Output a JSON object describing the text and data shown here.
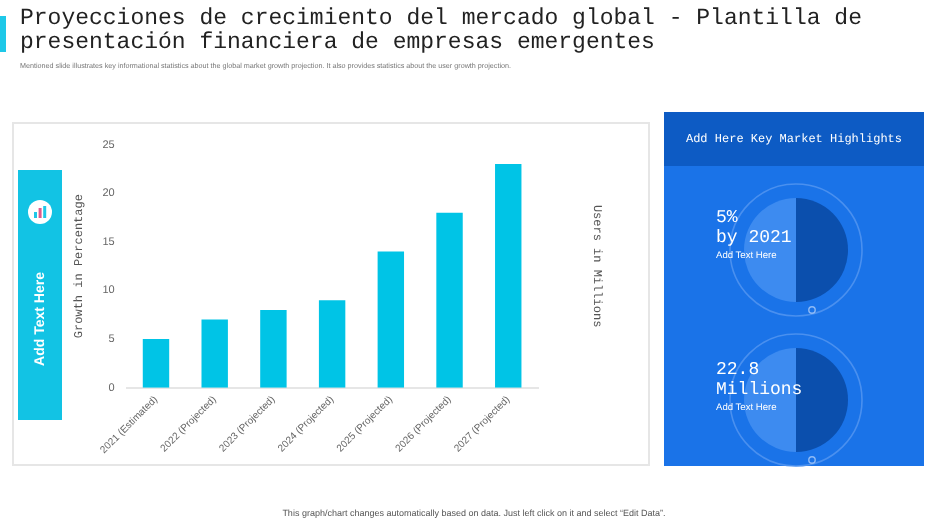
{
  "chart_data": {
    "type": "bar",
    "title": "Proyecciones de crecimiento del mercado global - Plantilla de presentación financiera de empresas emergentes",
    "subtitle": "Mentioned slide illustrates key informational statistics about the global market growth projection. It also provides statistics about the user growth projection.",
    "categories": [
      "2021 (Estimated)",
      "2022 (Projected)",
      "2023 (Projected)",
      "2024 (Projected)",
      "2025 (Projected)",
      "2026 (Projected)",
      "2027 (Projected)"
    ],
    "values": [
      5,
      7,
      8,
      9,
      14,
      18,
      23
    ],
    "color": "#00c4e6",
    "ylabel": "Growth in Percentage",
    "y2label": "Users in Millions",
    "ylim": [
      0,
      25
    ],
    "yticks": [
      0,
      5,
      10,
      15,
      20,
      25
    ],
    "grid": false,
    "legend": false,
    "annotations": [
      "Add Text Here",
      "Add Here Key Market Highlights",
      "5%",
      "by 2021",
      "Add Text Here",
      "22.8",
      "Millions",
      "Add Text Here",
      "This graph/chart changes automatically based on data. Just left click on it and select “Edit Data”."
    ]
  }
}
